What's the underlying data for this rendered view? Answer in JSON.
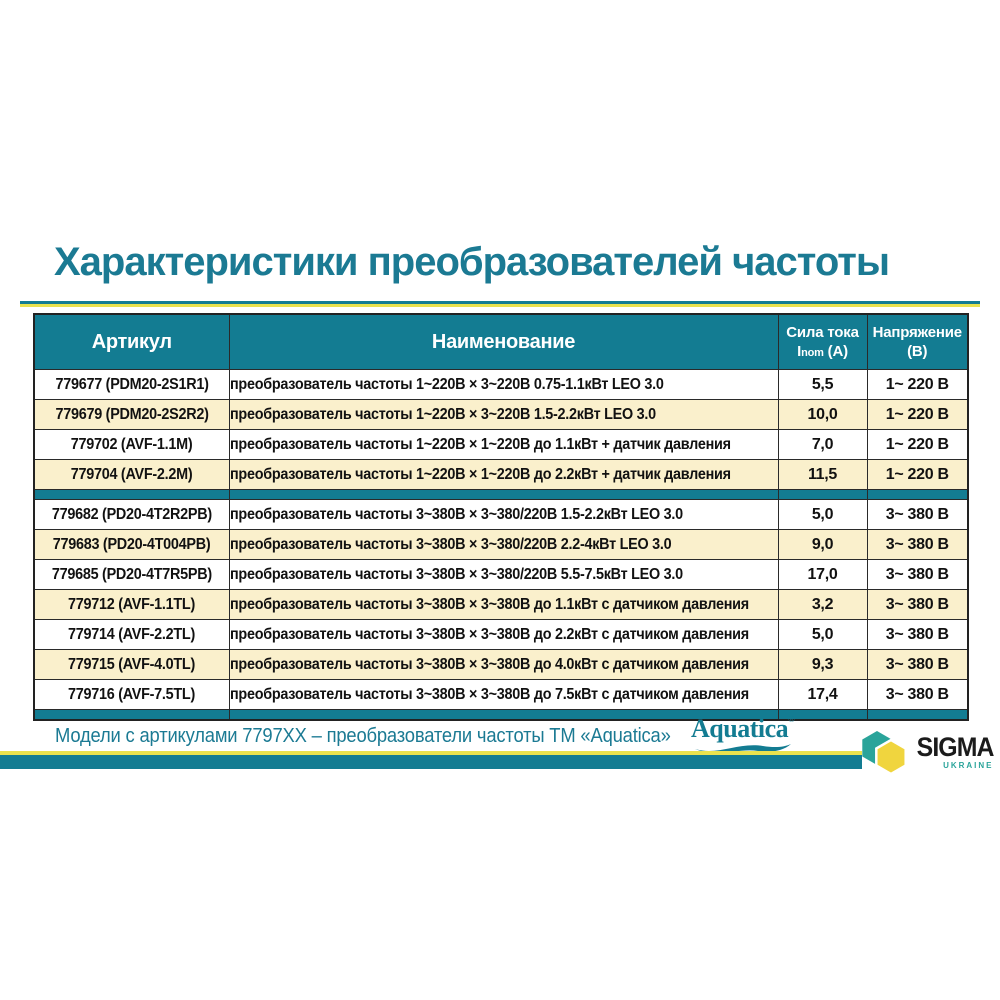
{
  "title": "Характеристики преобразователей частоты",
  "colors": {
    "teal": "#137c92",
    "cream_row": "#faf0cc",
    "accent_yellow": "#e9e24e",
    "title_text": "#1b7a93",
    "sigma_teal": "#2aa49a",
    "sigma_yellow": "#f0d53e"
  },
  "table": {
    "headers": {
      "article": "Артикул",
      "name": "Наименование",
      "current_line1": "Сила тока",
      "current_i": "I",
      "current_sub": "nom",
      "current_unit": "(А)",
      "voltage_line1": "Напряжение",
      "voltage_line2": "(В)"
    },
    "groups": [
      {
        "rows": [
          {
            "article": "779677 (PDM20-2S1R1)",
            "name": "преобразователь частоты 1~220В × 3~220В 0.75-1.1кВт LEO 3.0",
            "current": "5,5",
            "voltage": "1~ 220 В"
          },
          {
            "article": "779679 (PDM20-2S2R2)",
            "name": "преобразователь частоты 1~220В × 3~220В 1.5-2.2кВт LEO 3.0",
            "current": "10,0",
            "voltage": "1~ 220 В"
          },
          {
            "article": "779702 (AVF-1.1M)",
            "name": "преобразователь частоты 1~220В × 1~220В до 1.1кВт + датчик давления",
            "current": "7,0",
            "voltage": "1~ 220 В"
          },
          {
            "article": "779704 (AVF-2.2M)",
            "name": "преобразователь частоты 1~220В × 1~220В до 2.2кВт + датчик давления",
            "current": "11,5",
            "voltage": "1~ 220 В"
          }
        ]
      },
      {
        "rows": [
          {
            "article": "779682 (PD20-4T2R2PB)",
            "name": "преобразователь частоты 3~380В × 3~380/220В 1.5-2.2кВт LEO 3.0",
            "current": "5,0",
            "voltage": "3~ 380 В"
          },
          {
            "article": "779683 (PD20-4T004PB)",
            "name": "преобразователь частоты 3~380В × 3~380/220В 2.2-4кВт LEO 3.0",
            "current": "9,0",
            "voltage": "3~ 380 В"
          },
          {
            "article": "779685 (PD20-4T7R5PB)",
            "name": "преобразователь частоты 3~380В × 3~380/220В 5.5-7.5кВт LEO 3.0",
            "current": "17,0",
            "voltage": "3~ 380 В"
          },
          {
            "article": "779712 (AVF-1.1TL)",
            "name": "преобразователь частоты 3~380В × 3~380В до 1.1кВт с датчиком давления",
            "current": "3,2",
            "voltage": "3~ 380 В"
          },
          {
            "article": "779714 (AVF-2.2TL)",
            "name": "преобразователь частоты 3~380В × 3~380В до 2.2кВт с датчиком давления",
            "current": "5,0",
            "voltage": "3~ 380 В"
          },
          {
            "article": "779715 (AVF-4.0TL)",
            "name": "преобразователь частоты 3~380В × 3~380В до 4.0кВт с датчиком давления",
            "current": "9,3",
            "voltage": "3~ 380 В"
          },
          {
            "article": "779716 (AVF-7.5TL)",
            "name": "преобразователь частоты 3~380В × 3~380В до 7.5кВт с датчиком давления",
            "current": "17,4",
            "voltage": "3~ 380 В"
          }
        ]
      }
    ]
  },
  "footer": {
    "note": "Модели с артикулами 7797ХХ – преобразователи частоты ТМ «Aquatica»",
    "aquatica_name": "Aquatica",
    "aquatica_reg": "®",
    "sigma_name": "SIGMA",
    "sigma_sub": "UKRAINE"
  }
}
